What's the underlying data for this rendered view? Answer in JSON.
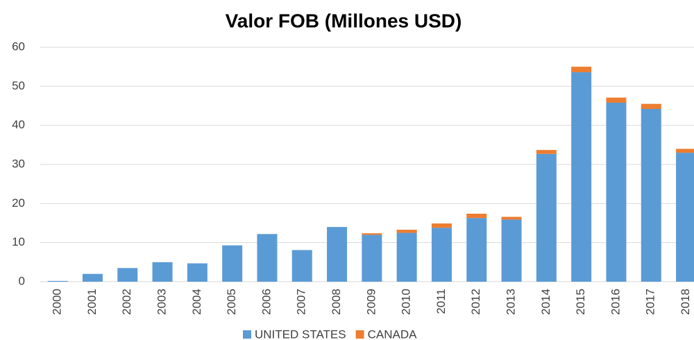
{
  "chart_data": {
    "type": "stacked_bar",
    "title": "Valor FOB (Millones USD)",
    "categories": [
      "2000",
      "2001",
      "2002",
      "2003",
      "2004",
      "2005",
      "2006",
      "2007",
      "2008",
      "2009",
      "2010",
      "2011",
      "2012",
      "2013",
      "2014",
      "2015",
      "2016",
      "2017",
      "2018"
    ],
    "series": [
      {
        "name": "UNITED STATES",
        "color": "#5b9bd5",
        "values": [
          0.2,
          2.0,
          3.5,
          5.0,
          4.7,
          9.3,
          12.2,
          8.1,
          14.0,
          12.0,
          12.5,
          13.8,
          16.3,
          15.9,
          32.7,
          53.6,
          45.8,
          44.2,
          33.0
        ]
      },
      {
        "name": "CANADA",
        "color": "#ed7d31",
        "values": [
          0,
          0,
          0,
          0,
          0,
          0,
          0,
          0,
          0,
          0.4,
          0.8,
          1.1,
          1.1,
          0.7,
          1.0,
          1.4,
          1.3,
          1.3,
          1.0
        ]
      }
    ],
    "ylim": [
      0,
      60
    ],
    "yticks": [
      0,
      10,
      20,
      30,
      40,
      50,
      60
    ],
    "grid": true,
    "legend": "bottom"
  }
}
